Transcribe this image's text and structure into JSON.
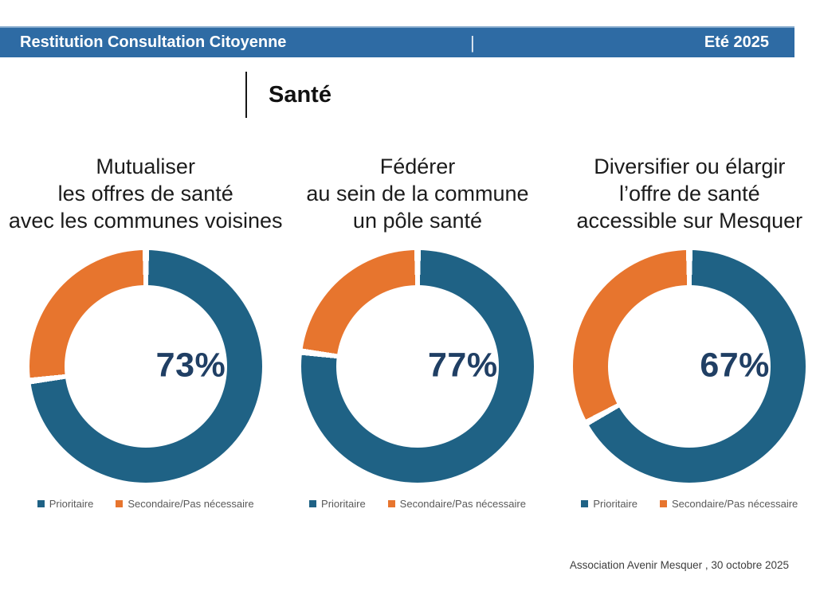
{
  "header": {
    "title": "Restitution Consultation Citoyenne",
    "separator": "|",
    "period": "Eté 2025",
    "bg_color": "#2e6ba4",
    "text_color": "#ffffff"
  },
  "section": {
    "title": "Santé"
  },
  "colors": {
    "prioritaire": "#1f6285",
    "secondaire": "#e7752e",
    "percent_label": "#203f64",
    "legend_text": "#595959"
  },
  "legend": {
    "items": [
      {
        "label": "Prioritaire",
        "color_key": "prioritaire"
      },
      {
        "label": "Secondaire/Pas nécessaire",
        "color_key": "secondaire"
      }
    ]
  },
  "chart_data": [
    {
      "type": "pie",
      "subtype": "donut",
      "title": "Mutualiser les offres de santé avec les communes voisines",
      "title_lines": [
        "Mutualiser",
        "les offres de santé",
        "avec les communes voisines"
      ],
      "labels": [
        "Prioritaire",
        "Secondaire/Pas nécessaire"
      ],
      "values": [
        73,
        27
      ],
      "center_label": "73%",
      "start_angle": "top",
      "direction": "clockwise"
    },
    {
      "type": "pie",
      "subtype": "donut",
      "title": "Fédérer au sein de la commune un pôle santé",
      "title_lines": [
        "Fédérer",
        "au sein de la commune",
        "un pôle santé"
      ],
      "labels": [
        "Prioritaire",
        "Secondaire/Pas nécessaire"
      ],
      "values": [
        77,
        23
      ],
      "center_label": "77%",
      "start_angle": "top",
      "direction": "clockwise"
    },
    {
      "type": "pie",
      "subtype": "donut",
      "title": "Diversifier ou élargir l’offre de santé accessible sur Mesquer",
      "title_lines": [
        "Diversifier ou élargir",
        "l’offre de santé",
        "accessible sur Mesquer"
      ],
      "labels": [
        "Prioritaire",
        "Secondaire/Pas nécessaire"
      ],
      "values": [
        67,
        33
      ],
      "center_label": "67%",
      "start_angle": "top",
      "direction": "clockwise"
    }
  ],
  "footer": {
    "credit": "Association Avenir Mesquer , 30 octobre 2025"
  }
}
